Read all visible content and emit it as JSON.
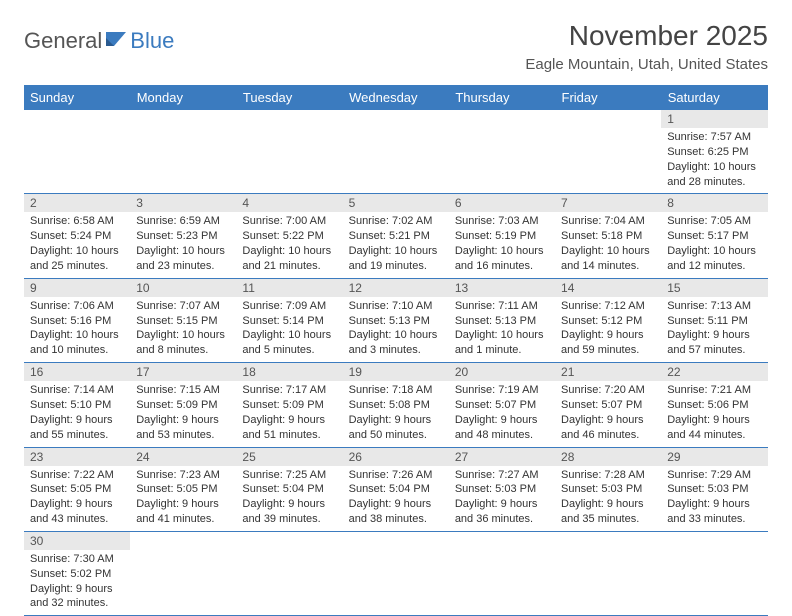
{
  "logo": {
    "general": "General",
    "blue": "Blue"
  },
  "title": "November 2025",
  "location": "Eagle Mountain, Utah, United States",
  "header_bg": "#3b7bbf",
  "weekdays": [
    "Sunday",
    "Monday",
    "Tuesday",
    "Wednesday",
    "Thursday",
    "Friday",
    "Saturday"
  ],
  "weeks": [
    [
      null,
      null,
      null,
      null,
      null,
      null,
      {
        "n": "1",
        "sr": "Sunrise: 7:57 AM",
        "ss": "Sunset: 6:25 PM",
        "d1": "Daylight: 10 hours",
        "d2": "and 28 minutes."
      }
    ],
    [
      {
        "n": "2",
        "sr": "Sunrise: 6:58 AM",
        "ss": "Sunset: 5:24 PM",
        "d1": "Daylight: 10 hours",
        "d2": "and 25 minutes."
      },
      {
        "n": "3",
        "sr": "Sunrise: 6:59 AM",
        "ss": "Sunset: 5:23 PM",
        "d1": "Daylight: 10 hours",
        "d2": "and 23 minutes."
      },
      {
        "n": "4",
        "sr": "Sunrise: 7:00 AM",
        "ss": "Sunset: 5:22 PM",
        "d1": "Daylight: 10 hours",
        "d2": "and 21 minutes."
      },
      {
        "n": "5",
        "sr": "Sunrise: 7:02 AM",
        "ss": "Sunset: 5:21 PM",
        "d1": "Daylight: 10 hours",
        "d2": "and 19 minutes."
      },
      {
        "n": "6",
        "sr": "Sunrise: 7:03 AM",
        "ss": "Sunset: 5:19 PM",
        "d1": "Daylight: 10 hours",
        "d2": "and 16 minutes."
      },
      {
        "n": "7",
        "sr": "Sunrise: 7:04 AM",
        "ss": "Sunset: 5:18 PM",
        "d1": "Daylight: 10 hours",
        "d2": "and 14 minutes."
      },
      {
        "n": "8",
        "sr": "Sunrise: 7:05 AM",
        "ss": "Sunset: 5:17 PM",
        "d1": "Daylight: 10 hours",
        "d2": "and 12 minutes."
      }
    ],
    [
      {
        "n": "9",
        "sr": "Sunrise: 7:06 AM",
        "ss": "Sunset: 5:16 PM",
        "d1": "Daylight: 10 hours",
        "d2": "and 10 minutes."
      },
      {
        "n": "10",
        "sr": "Sunrise: 7:07 AM",
        "ss": "Sunset: 5:15 PM",
        "d1": "Daylight: 10 hours",
        "d2": "and 8 minutes."
      },
      {
        "n": "11",
        "sr": "Sunrise: 7:09 AM",
        "ss": "Sunset: 5:14 PM",
        "d1": "Daylight: 10 hours",
        "d2": "and 5 minutes."
      },
      {
        "n": "12",
        "sr": "Sunrise: 7:10 AM",
        "ss": "Sunset: 5:13 PM",
        "d1": "Daylight: 10 hours",
        "d2": "and 3 minutes."
      },
      {
        "n": "13",
        "sr": "Sunrise: 7:11 AM",
        "ss": "Sunset: 5:13 PM",
        "d1": "Daylight: 10 hours",
        "d2": "and 1 minute."
      },
      {
        "n": "14",
        "sr": "Sunrise: 7:12 AM",
        "ss": "Sunset: 5:12 PM",
        "d1": "Daylight: 9 hours",
        "d2": "and 59 minutes."
      },
      {
        "n": "15",
        "sr": "Sunrise: 7:13 AM",
        "ss": "Sunset: 5:11 PM",
        "d1": "Daylight: 9 hours",
        "d2": "and 57 minutes."
      }
    ],
    [
      {
        "n": "16",
        "sr": "Sunrise: 7:14 AM",
        "ss": "Sunset: 5:10 PM",
        "d1": "Daylight: 9 hours",
        "d2": "and 55 minutes."
      },
      {
        "n": "17",
        "sr": "Sunrise: 7:15 AM",
        "ss": "Sunset: 5:09 PM",
        "d1": "Daylight: 9 hours",
        "d2": "and 53 minutes."
      },
      {
        "n": "18",
        "sr": "Sunrise: 7:17 AM",
        "ss": "Sunset: 5:09 PM",
        "d1": "Daylight: 9 hours",
        "d2": "and 51 minutes."
      },
      {
        "n": "19",
        "sr": "Sunrise: 7:18 AM",
        "ss": "Sunset: 5:08 PM",
        "d1": "Daylight: 9 hours",
        "d2": "and 50 minutes."
      },
      {
        "n": "20",
        "sr": "Sunrise: 7:19 AM",
        "ss": "Sunset: 5:07 PM",
        "d1": "Daylight: 9 hours",
        "d2": "and 48 minutes."
      },
      {
        "n": "21",
        "sr": "Sunrise: 7:20 AM",
        "ss": "Sunset: 5:07 PM",
        "d1": "Daylight: 9 hours",
        "d2": "and 46 minutes."
      },
      {
        "n": "22",
        "sr": "Sunrise: 7:21 AM",
        "ss": "Sunset: 5:06 PM",
        "d1": "Daylight: 9 hours",
        "d2": "and 44 minutes."
      }
    ],
    [
      {
        "n": "23",
        "sr": "Sunrise: 7:22 AM",
        "ss": "Sunset: 5:05 PM",
        "d1": "Daylight: 9 hours",
        "d2": "and 43 minutes."
      },
      {
        "n": "24",
        "sr": "Sunrise: 7:23 AM",
        "ss": "Sunset: 5:05 PM",
        "d1": "Daylight: 9 hours",
        "d2": "and 41 minutes."
      },
      {
        "n": "25",
        "sr": "Sunrise: 7:25 AM",
        "ss": "Sunset: 5:04 PM",
        "d1": "Daylight: 9 hours",
        "d2": "and 39 minutes."
      },
      {
        "n": "26",
        "sr": "Sunrise: 7:26 AM",
        "ss": "Sunset: 5:04 PM",
        "d1": "Daylight: 9 hours",
        "d2": "and 38 minutes."
      },
      {
        "n": "27",
        "sr": "Sunrise: 7:27 AM",
        "ss": "Sunset: 5:03 PM",
        "d1": "Daylight: 9 hours",
        "d2": "and 36 minutes."
      },
      {
        "n": "28",
        "sr": "Sunrise: 7:28 AM",
        "ss": "Sunset: 5:03 PM",
        "d1": "Daylight: 9 hours",
        "d2": "and 35 minutes."
      },
      {
        "n": "29",
        "sr": "Sunrise: 7:29 AM",
        "ss": "Sunset: 5:03 PM",
        "d1": "Daylight: 9 hours",
        "d2": "and 33 minutes."
      }
    ],
    [
      {
        "n": "30",
        "sr": "Sunrise: 7:30 AM",
        "ss": "Sunset: 5:02 PM",
        "d1": "Daylight: 9 hours",
        "d2": "and 32 minutes."
      },
      null,
      null,
      null,
      null,
      null,
      null
    ]
  ]
}
